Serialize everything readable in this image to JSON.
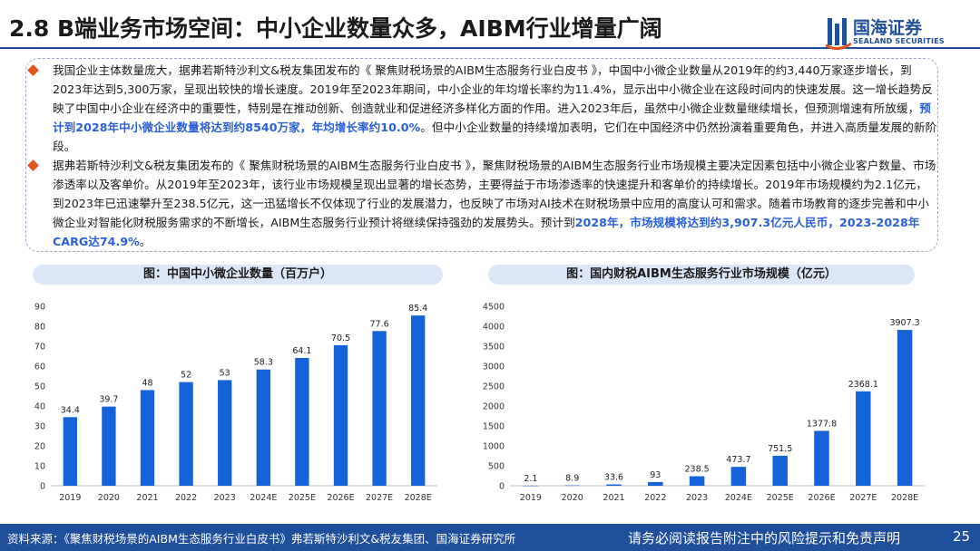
{
  "header": {
    "title": "2.8 B端业务市场空间：中小企业数量众多，AIBM行业增量广阔",
    "logo_main": "国海证券",
    "logo_sub": "SEALAND SECURITIES",
    "logo_icon": "sealand-logo-icon"
  },
  "body": {
    "para1_a": "我国企业主体数量庞大，据弗若斯特沙利文&税友集团发布的《 聚焦财税场景的AIBM生态服务行业白皮书 》，中国中小微企业数量从2019年的约3,440万家逐步增长，到2023年达到5,300万家，呈现出较快的增长速度。2019年至2023年期间，中小企业的年均增长率约为11.4%，显示出中小微企业在这段时间内的快速发展。这一增长趋势反映了中国中小企业在经济中的重要性，特别是在推动创新、创造就业和促进经济多样化方面的作用。进入2023年后，虽然中小微企业数量继续增长，但预测增速有所放缓，",
    "para1_hl": "预计到2028年中小微企业数量将达到约8540万家，年均增长率约10.0%",
    "para1_b": "。但中小企业数量的持续增加表明，它们在中国经济中仍然扮演着重要角色，并进入高质量发展的新阶段。",
    "para2_a": "据弗若斯特沙利文&税友集团发布的《 聚焦财税场景的AIBM生态服务行业白皮书 》，聚焦财税场景的AIBM生态服务行业市场规模主要决定因素包括中小微企业客户数量、市场渗透率以及客单价。从2019年至2023年，该行业市场规模呈现出显著的增长态势，主要得益于市场渗透率的快速提升和客单价的持续增长。2019年市场规模约为2.1亿元，到2023年已迅速攀升至238.5亿元，这一迅猛增长不仅体现了行业的发展潜力，也反映了市场对AI技术在财税场景中应用的高度认可和需求。随着市场教育的逐步完善和中小微企业对智能化财税服务需求的不断增长，AIBM生态服务行业预计将继续保持强劲的发展势头。预计到",
    "para2_hl": "2028年，市场规模将达到约3,907.3亿元人民币，2023-2028年CARG达74.9%",
    "para2_b": "。"
  },
  "chart_data": [
    {
      "type": "bar",
      "title": "图：中国中小微企业数量（百万户）",
      "categories": [
        "2019",
        "2020",
        "2021",
        "2022",
        "2023",
        "2024E",
        "2025E",
        "2026E",
        "2027E",
        "2028E"
      ],
      "values": [
        34.4,
        39.7,
        48,
        52,
        53,
        58.3,
        64.1,
        70.5,
        77.6,
        85.4
      ],
      "value_labels": [
        "34.4",
        "39.7",
        "48",
        "52",
        "53",
        "58.3",
        "64.1",
        "70.5",
        "77.6",
        "85.4"
      ],
      "yticks": [
        "0",
        "10",
        "20",
        "30",
        "40",
        "50",
        "60",
        "70",
        "80",
        "90"
      ],
      "ylim": [
        0,
        90
      ],
      "bar_color": "#1463d8",
      "grid": false,
      "xlabel": "",
      "ylabel": ""
    },
    {
      "type": "bar",
      "title": "图：国内财税AIBM生态服务行业市场规模（亿元）",
      "categories": [
        "2019",
        "2020",
        "2021",
        "2022",
        "2023",
        "2024E",
        "2025E",
        "2026E",
        "2027E",
        "2028E"
      ],
      "values": [
        2.1,
        8.9,
        33.6,
        93,
        238.5,
        473.7,
        751.5,
        1377.8,
        2368.1,
        3907.3
      ],
      "value_labels": [
        "2.1",
        "8.9",
        "33.6",
        "93",
        "238.5",
        "473.7",
        "751.5",
        "1377.8",
        "2368.1",
        "3907.3"
      ],
      "yticks": [
        "0",
        "500",
        "1000",
        "1500",
        "2000",
        "2500",
        "3000",
        "3500",
        "4000",
        "4500"
      ],
      "ylim": [
        0,
        4500
      ],
      "bar_color": "#1463d8",
      "grid": false,
      "xlabel": "",
      "ylabel": ""
    }
  ],
  "footer": {
    "source": "资料来源：《聚焦财税场景的AIBM生态服务行业白皮书》弗若斯特沙利文&税友集团、国海证券研究所",
    "disclaimer": "请务必阅读报告附注中的风险提示和免责声明",
    "page": "25"
  }
}
